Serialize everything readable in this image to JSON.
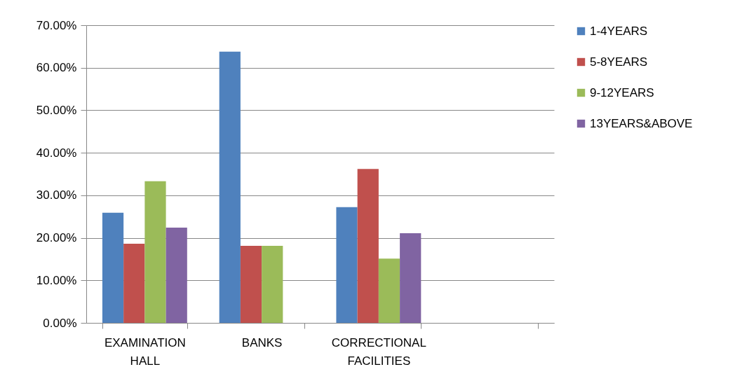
{
  "chart_data": {
    "type": "bar",
    "categories": [
      "EXAMINATION HALL",
      "BANKS",
      "CORRECTIONAL FACILITIES",
      null
    ],
    "series": [
      {
        "name": "1-4YEARS",
        "color": "#4f81bd",
        "values": [
          25.9,
          63.8,
          27.2,
          null
        ]
      },
      {
        "name": "5-8YEARS",
        "color": "#c0504d",
        "values": [
          18.6,
          18.1,
          36.2,
          null
        ]
      },
      {
        "name": "9-12YEARS",
        "color": "#9bbb59",
        "values": [
          33.3,
          18.1,
          15.1,
          null
        ]
      },
      {
        "name": "13YEARS&ABOVE",
        "color": "#8064a2",
        "values": [
          22.4,
          null,
          21.1,
          null
        ]
      }
    ],
    "ylim": [
      0,
      70
    ],
    "yticks": [
      {
        "value": 0,
        "label": "0.00%"
      },
      {
        "value": 10,
        "label": "10.00%"
      },
      {
        "value": 20,
        "label": "20.00%"
      },
      {
        "value": 30,
        "label": "30.00%"
      },
      {
        "value": 40,
        "label": "40.00%"
      },
      {
        "value": 50,
        "label": "50.00%"
      },
      {
        "value": 60,
        "label": "60.00%"
      },
      {
        "value": 70,
        "label": "70.00%"
      }
    ],
    "grid": "y",
    "legend": "right"
  }
}
